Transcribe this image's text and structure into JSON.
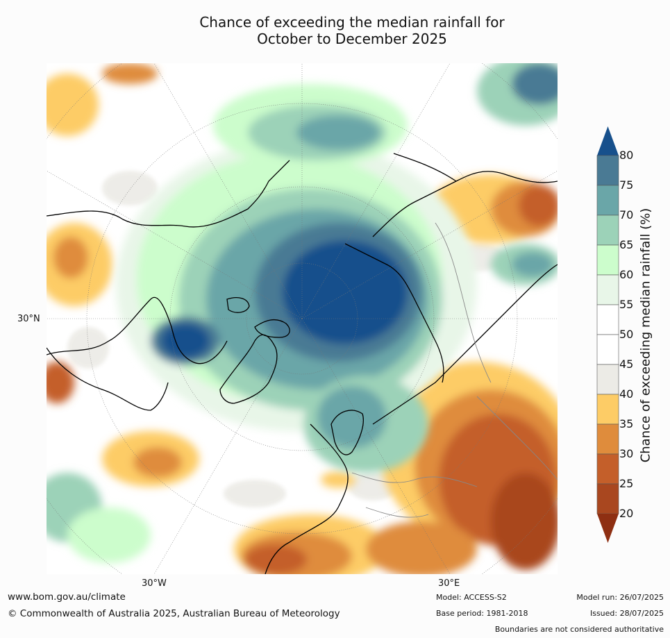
{
  "title": {
    "line1": "Chance of exceeding the median rainfall for",
    "line2": "October to December 2025"
  },
  "map": {
    "projection": "north polar stereographic",
    "lat_labels": [
      "30°N"
    ],
    "lon_labels": [
      "30°W",
      "30°E"
    ]
  },
  "colorbar": {
    "label": "Chance of exceeding median rainfall (%)",
    "ticks": [
      "20",
      "25",
      "30",
      "35",
      "40",
      "45",
      "50",
      "55",
      "60",
      "65",
      "70",
      "75",
      "80"
    ],
    "colors": {
      "below_20": "#8e2f12",
      "20-25": "#a9471f",
      "25-30": "#c45f2a",
      "30-35": "#df8c3c",
      "35-40": "#fdcc66",
      "40-45": "#ecebe6",
      "45-50": "#ffffff",
      "50-55": "#ffffff",
      "55-60": "#e8f6e8",
      "60-65": "#ccfdcc",
      "65-70": "#9cd2b8",
      "70-75": "#6aa6a8",
      "75-80": "#4a7a94",
      "above_80": "#17508c"
    }
  },
  "footer": {
    "website": "www.bom.gov.au/climate",
    "copyright": "© Commonwealth of Australia 2025, Australian Bureau of Meteorology",
    "model": "Model: ACCESS-S2",
    "base_period": "Base period: 1981-2018",
    "model_run": "Model run: 26/07/2025",
    "issued": "Issued: 28/07/2025",
    "disclaimer": "Boundaries are not considered authoritative"
  }
}
